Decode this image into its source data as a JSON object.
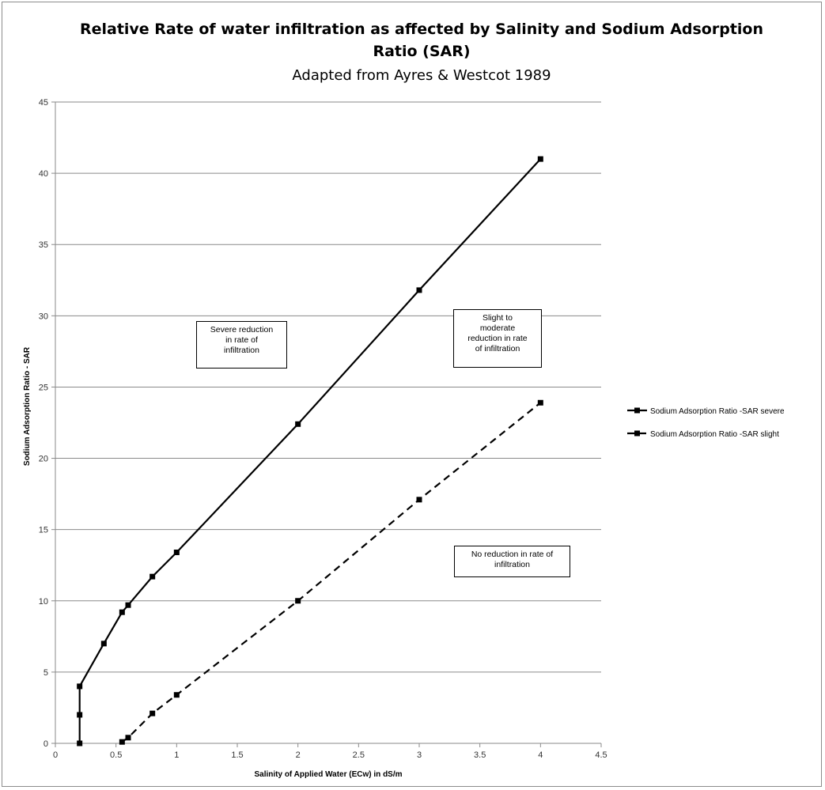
{
  "chart_data": {
    "type": "line",
    "title": "Relative Rate of water infiltration as affected by Salinity and Sodium Adsorption",
    "title_line2": "Ratio (SAR)",
    "subtitle": "Adapted from Ayres & Westcot 1989",
    "xlabel": "Salinity of Applied Water (ECw) in dS/m",
    "ylabel": "Sodium Adsorption Ratio - SAR",
    "xlim": [
      0,
      4.5
    ],
    "ylim": [
      0,
      45
    ],
    "xticks": [
      0,
      0.5,
      1,
      1.5,
      2,
      2.5,
      3,
      3.5,
      4,
      4.5
    ],
    "yticks": [
      0,
      5,
      10,
      15,
      20,
      25,
      30,
      35,
      40,
      45
    ],
    "grid": "horizontal",
    "legend_position": "right",
    "series": [
      {
        "name": "Sodium Adsorption Ratio -SAR severe",
        "style": "solid",
        "color": "#000000",
        "x": [
          0.2,
          0.2,
          0.2,
          0.4,
          0.55,
          0.6,
          0.8,
          1.0,
          2.0,
          3.0,
          4.0
        ],
        "y": [
          0,
          2,
          4,
          7,
          9.2,
          9.7,
          11.7,
          13.4,
          22.4,
          31.8,
          41
        ]
      },
      {
        "name": "Sodium Adsorption Ratio -SAR slight",
        "style": "dashed",
        "color": "#000000",
        "x": [
          0.55,
          0.6,
          0.8,
          1.0,
          2.0,
          3.0,
          4.0
        ],
        "y": [
          0.1,
          0.4,
          2.1,
          3.4,
          10,
          17.1,
          23.9
        ]
      }
    ],
    "annotations": [
      {
        "lines": [
          "Severe  reduction",
          "in rate of",
          "infiltration"
        ]
      },
      {
        "lines": [
          "Slight to",
          "moderate",
          "reduction in rate",
          "of infiltration"
        ]
      },
      {
        "lines": [
          "No reduction in rate of",
          "infiltration"
        ]
      }
    ]
  }
}
